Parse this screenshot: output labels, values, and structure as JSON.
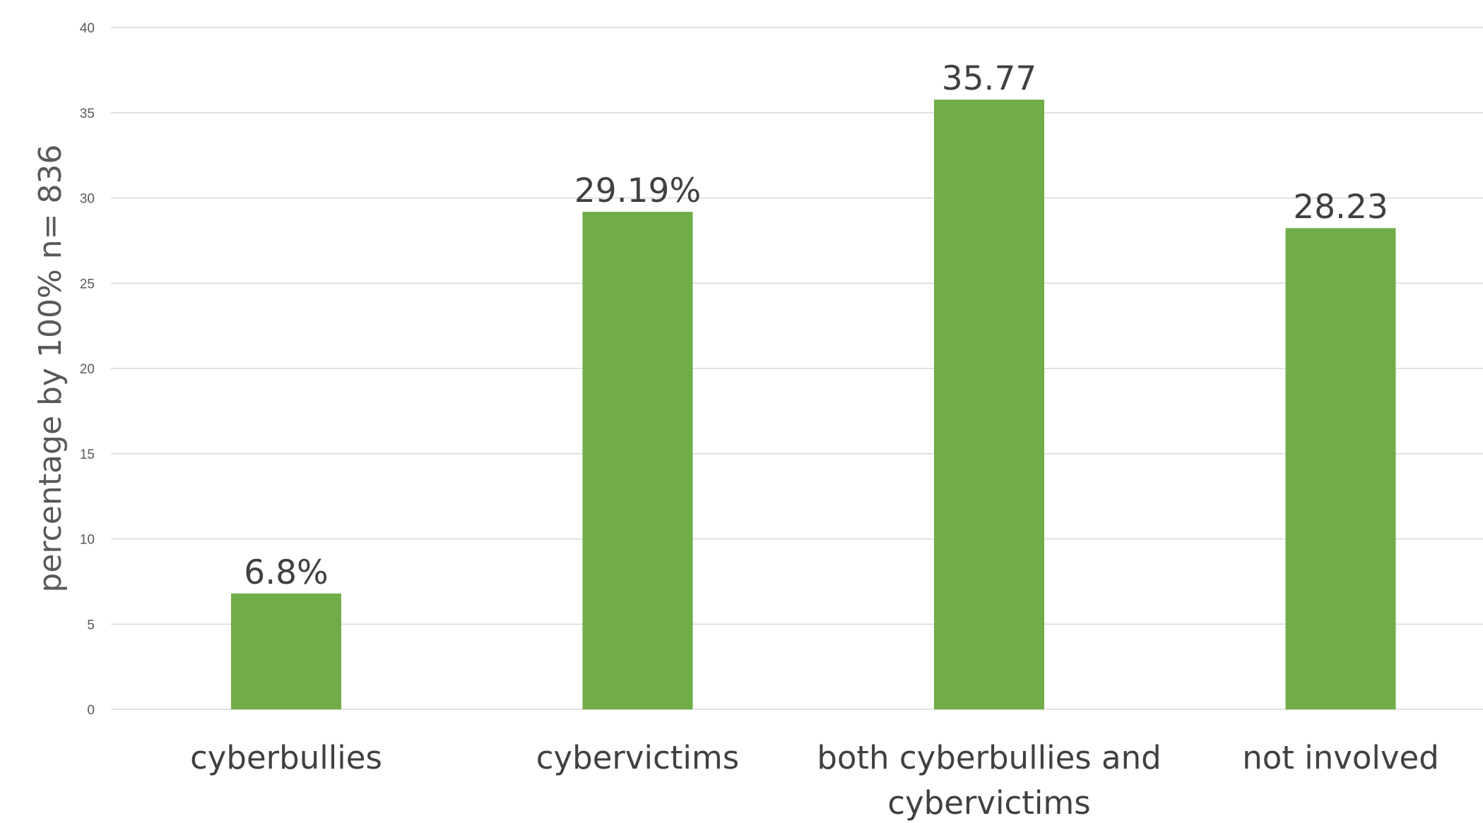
{
  "chart_data": {
    "type": "bar",
    "categories": [
      [
        "cyberbullies"
      ],
      [
        "cybervictims"
      ],
      [
        "both cyberbullies and",
        "cybervictims"
      ],
      [
        "not involved"
      ]
    ],
    "values": [
      6.8,
      29.19,
      35.77,
      28.23
    ],
    "data_labels": [
      "6.8%",
      "29.19%",
      "35.77",
      "28.23"
    ],
    "title": "",
    "xlabel": "",
    "ylabel": "percentage by 100% n= 836",
    "ylim": [
      0,
      40
    ],
    "yticks": [
      0,
      5,
      10,
      15,
      20,
      25,
      30,
      35,
      40
    ],
    "grid": true,
    "legend": "none",
    "bar_color": "#70ad47"
  }
}
